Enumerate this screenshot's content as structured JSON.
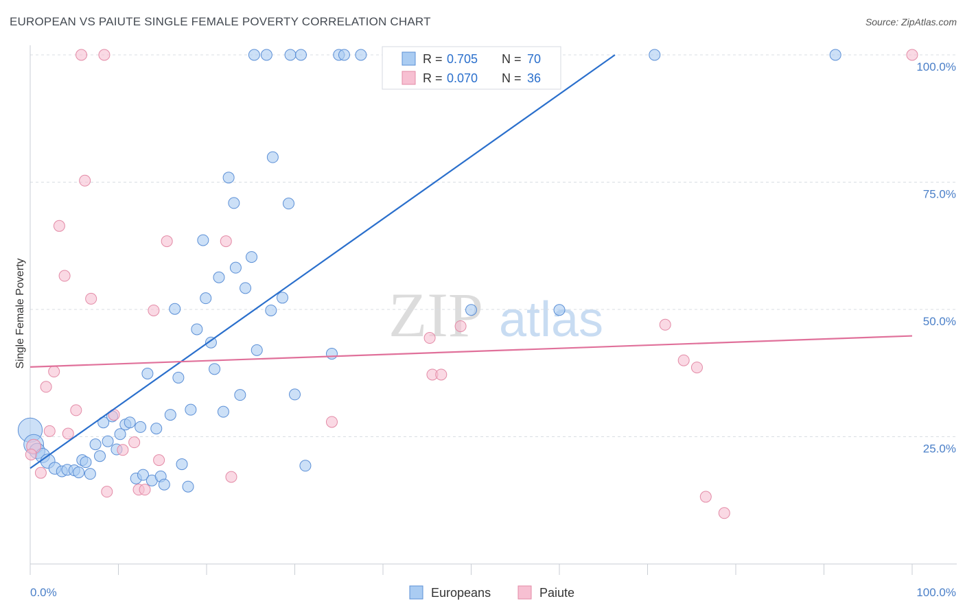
{
  "title": "EUROPEAN VS PAIUTE SINGLE FEMALE POVERTY CORRELATION CHART",
  "source": "Source: ZipAtlas.com",
  "watermark": {
    "part1": "ZIP",
    "part2": "atlas"
  },
  "colors": {
    "european_fill": "#aaccf2",
    "european_stroke": "#5b8fd6",
    "european_line": "#2a6fcc",
    "paiute_fill": "#f7c0d2",
    "paiute_stroke": "#e38aa6",
    "paiute_line": "#e0709a",
    "axis_label": "#4a7fc8",
    "grid": "#d8dde3"
  },
  "legend_top": {
    "rows": [
      {
        "r_label": "R =",
        "r_value": "0.705",
        "n_label": "N =",
        "n_value": "70"
      },
      {
        "r_label": "R =",
        "r_value": "0.070",
        "n_label": "N =",
        "n_value": "36"
      }
    ]
  },
  "chart_data": {
    "type": "scatter",
    "xlabel": "",
    "ylabel": "Single Female Poverty",
    "xlim": [
      0,
      100
    ],
    "ylim": [
      0,
      100
    ],
    "x_tick_labels": [
      "0.0%",
      "100.0%"
    ],
    "y_tick_labels": [
      "25.0%",
      "50.0%",
      "75.0%",
      "100.0%"
    ],
    "y_ticks": [
      25,
      50,
      75,
      100
    ],
    "grid": "horizontal dashed",
    "legend_position": "bottom-center",
    "series": [
      {
        "name": "Europeans",
        "trend": {
          "x": [
            0,
            66.3
          ],
          "y": [
            18.8,
            100
          ]
        },
        "points": [
          {
            "x": 0.0,
            "y": 26.3,
            "s": 2.2
          },
          {
            "x": 0.4,
            "y": 23.5,
            "s": 1.8
          },
          {
            "x": 0.8,
            "y": 22.2,
            "s": 1.4
          },
          {
            "x": 1.4,
            "y": 21.3,
            "s": 1.3
          },
          {
            "x": 2.0,
            "y": 20.2,
            "s": 1.3
          },
          {
            "x": 2.8,
            "y": 18.8,
            "s": 1.1
          },
          {
            "x": 3.6,
            "y": 18.2,
            "s": 1
          },
          {
            "x": 4.2,
            "y": 18.5,
            "s": 1
          },
          {
            "x": 5.0,
            "y": 18.4,
            "s": 1
          },
          {
            "x": 5.5,
            "y": 18.0,
            "s": 1
          },
          {
            "x": 5.9,
            "y": 20.4,
            "s": 1
          },
          {
            "x": 6.3,
            "y": 20.0,
            "s": 1
          },
          {
            "x": 6.8,
            "y": 17.7,
            "s": 1
          },
          {
            "x": 7.4,
            "y": 23.5,
            "s": 1
          },
          {
            "x": 7.9,
            "y": 21.2,
            "s": 1
          },
          {
            "x": 8.3,
            "y": 27.8,
            "s": 1
          },
          {
            "x": 8.8,
            "y": 24.1,
            "s": 1
          },
          {
            "x": 9.3,
            "y": 29.0,
            "s": 1
          },
          {
            "x": 9.8,
            "y": 22.5,
            "s": 1
          },
          {
            "x": 10.2,
            "y": 25.5,
            "s": 1
          },
          {
            "x": 10.8,
            "y": 27.4,
            "s": 1
          },
          {
            "x": 11.3,
            "y": 27.8,
            "s": 1
          },
          {
            "x": 12.0,
            "y": 16.8,
            "s": 1
          },
          {
            "x": 12.5,
            "y": 26.9,
            "s": 1
          },
          {
            "x": 12.8,
            "y": 17.5,
            "s": 1
          },
          {
            "x": 13.3,
            "y": 37.4,
            "s": 1
          },
          {
            "x": 13.8,
            "y": 16.4,
            "s": 1
          },
          {
            "x": 14.3,
            "y": 26.6,
            "s": 1
          },
          {
            "x": 14.8,
            "y": 17.2,
            "s": 1
          },
          {
            "x": 15.2,
            "y": 15.6,
            "s": 1
          },
          {
            "x": 15.9,
            "y": 29.3,
            "s": 1
          },
          {
            "x": 16.4,
            "y": 50.1,
            "s": 1
          },
          {
            "x": 16.8,
            "y": 36.6,
            "s": 1
          },
          {
            "x": 17.2,
            "y": 19.6,
            "s": 1
          },
          {
            "x": 17.9,
            "y": 15.2,
            "s": 1
          },
          {
            "x": 18.2,
            "y": 30.3,
            "s": 1
          },
          {
            "x": 18.9,
            "y": 46.1,
            "s": 1
          },
          {
            "x": 19.6,
            "y": 63.6,
            "s": 1
          },
          {
            "x": 19.9,
            "y": 52.2,
            "s": 1
          },
          {
            "x": 20.5,
            "y": 43.5,
            "s": 1
          },
          {
            "x": 20.9,
            "y": 38.3,
            "s": 1
          },
          {
            "x": 21.4,
            "y": 56.3,
            "s": 1
          },
          {
            "x": 21.9,
            "y": 29.9,
            "s": 1
          },
          {
            "x": 22.5,
            "y": 75.9,
            "s": 1
          },
          {
            "x": 23.1,
            "y": 70.9,
            "s": 1
          },
          {
            "x": 23.3,
            "y": 58.2,
            "s": 1
          },
          {
            "x": 23.8,
            "y": 33.2,
            "s": 1
          },
          {
            "x": 24.4,
            "y": 54.2,
            "s": 1
          },
          {
            "x": 25.1,
            "y": 60.3,
            "s": 1
          },
          {
            "x": 25.7,
            "y": 42.0,
            "s": 1
          },
          {
            "x": 27.3,
            "y": 49.8,
            "s": 1
          },
          {
            "x": 27.5,
            "y": 79.9,
            "s": 1
          },
          {
            "x": 28.6,
            "y": 52.3,
            "s": 1
          },
          {
            "x": 29.3,
            "y": 70.8,
            "s": 1
          },
          {
            "x": 30.0,
            "y": 33.3,
            "s": 1
          },
          {
            "x": 31.2,
            "y": 19.3,
            "s": 1
          },
          {
            "x": 34.2,
            "y": 41.3,
            "s": 1
          },
          {
            "x": 50.0,
            "y": 49.9,
            "s": 1
          },
          {
            "x": 60.0,
            "y": 49.9,
            "s": 1
          },
          {
            "x": 25.4,
            "y": 100,
            "s": 1
          },
          {
            "x": 26.8,
            "y": 100,
            "s": 1
          },
          {
            "x": 29.5,
            "y": 100,
            "s": 1
          },
          {
            "x": 30.7,
            "y": 100,
            "s": 1
          },
          {
            "x": 35.0,
            "y": 100,
            "s": 1
          },
          {
            "x": 35.6,
            "y": 100,
            "s": 1
          },
          {
            "x": 37.5,
            "y": 100,
            "s": 1
          },
          {
            "x": 46.1,
            "y": 100,
            "s": 1
          },
          {
            "x": 70.8,
            "y": 100,
            "s": 1
          },
          {
            "x": 91.3,
            "y": 100,
            "s": 1
          }
        ]
      },
      {
        "name": "Paiute",
        "trend": {
          "x": [
            0,
            100
          ],
          "y": [
            38.7,
            44.8
          ]
        },
        "points": [
          {
            "x": 0.4,
            "y": 23.1,
            "s": 1.3
          },
          {
            "x": 1.2,
            "y": 17.9,
            "s": 1
          },
          {
            "x": 1.8,
            "y": 34.8,
            "s": 1
          },
          {
            "x": 2.2,
            "y": 26.1,
            "s": 1
          },
          {
            "x": 2.7,
            "y": 37.8,
            "s": 1
          },
          {
            "x": 3.3,
            "y": 66.4,
            "s": 1
          },
          {
            "x": 3.9,
            "y": 56.6,
            "s": 1
          },
          {
            "x": 4.3,
            "y": 25.6,
            "s": 1
          },
          {
            "x": 5.2,
            "y": 30.2,
            "s": 1
          },
          {
            "x": 5.8,
            "y": 100,
            "s": 1
          },
          {
            "x": 6.2,
            "y": 75.3,
            "s": 1
          },
          {
            "x": 6.9,
            "y": 52.1,
            "s": 1
          },
          {
            "x": 8.4,
            "y": 100,
            "s": 1
          },
          {
            "x": 8.7,
            "y": 14.2,
            "s": 1
          },
          {
            "x": 9.5,
            "y": 29.3,
            "s": 1
          },
          {
            "x": 10.5,
            "y": 22.4,
            "s": 1
          },
          {
            "x": 11.8,
            "y": 23.9,
            "s": 1
          },
          {
            "x": 12.3,
            "y": 14.6,
            "s": 1
          },
          {
            "x": 13.0,
            "y": 14.6,
            "s": 1
          },
          {
            "x": 14.0,
            "y": 49.8,
            "s": 1
          },
          {
            "x": 14.6,
            "y": 20.4,
            "s": 1
          },
          {
            "x": 15.5,
            "y": 63.4,
            "s": 1
          },
          {
            "x": 22.2,
            "y": 63.4,
            "s": 1
          },
          {
            "x": 22.8,
            "y": 17.1,
            "s": 1
          },
          {
            "x": 34.2,
            "y": 27.9,
            "s": 1
          },
          {
            "x": 45.3,
            "y": 44.4,
            "s": 1
          },
          {
            "x": 45.6,
            "y": 37.2,
            "s": 1
          },
          {
            "x": 46.6,
            "y": 37.2,
            "s": 1
          },
          {
            "x": 48.8,
            "y": 46.7,
            "s": 1
          },
          {
            "x": 72.0,
            "y": 47.0,
            "s": 1
          },
          {
            "x": 74.1,
            "y": 40.0,
            "s": 1
          },
          {
            "x": 75.6,
            "y": 38.6,
            "s": 1
          },
          {
            "x": 76.6,
            "y": 13.2,
            "s": 1
          },
          {
            "x": 78.7,
            "y": 10.0,
            "s": 1
          },
          {
            "x": 100,
            "y": 100,
            "s": 1
          },
          {
            "x": 0.1,
            "y": 21.5,
            "s": 1
          }
        ]
      }
    ]
  }
}
